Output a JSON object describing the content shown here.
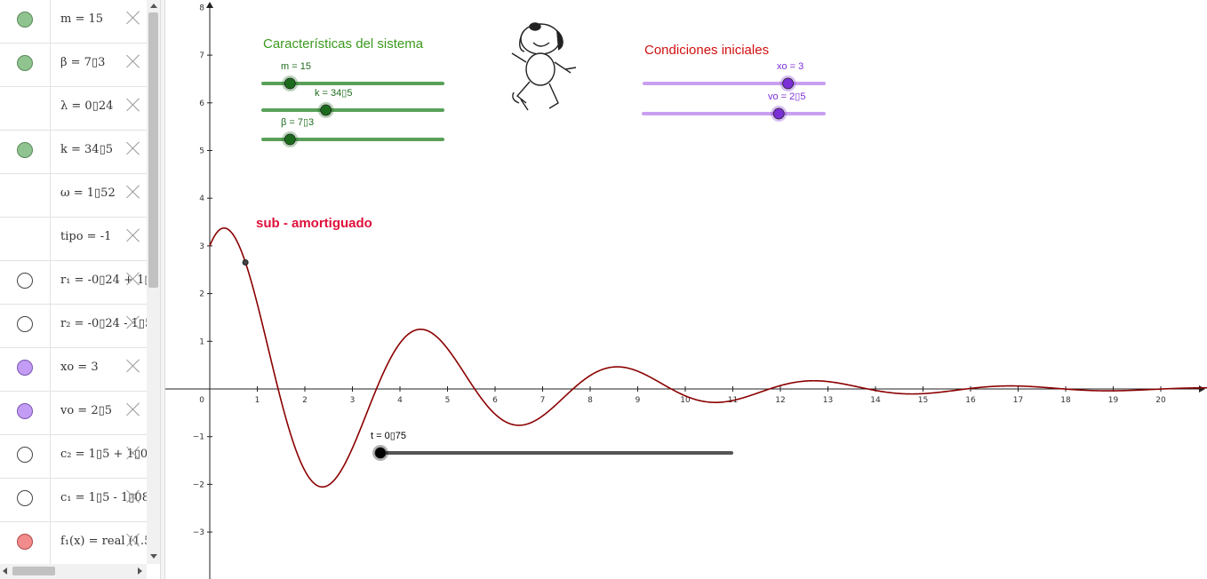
{
  "algebra": {
    "rows": [
      {
        "text": "m = 15",
        "marble": "#8fc38f",
        "marble_border": "#5a8a5a"
      },
      {
        "text": "β = 7▯3",
        "marble": "#8fc38f",
        "marble_border": "#5a8a5a"
      },
      {
        "text": "λ = 0▯24",
        "marble": null
      },
      {
        "text": "k = 34▯5",
        "marble": "#8fc38f",
        "marble_border": "#5a8a5a"
      },
      {
        "text": "ω = 1▯52",
        "marble": null
      },
      {
        "text": "tipo = -1",
        "marble": null
      },
      {
        "text": "r₁ = -0▯24 + 1▯",
        "marble": "#ffffff",
        "marble_border": "#444444"
      },
      {
        "text": "r₂ = -0▯24 - 1▯5",
        "marble": "#ffffff",
        "marble_border": "#444444"
      },
      {
        "text": "xo = 3",
        "marble": "#c39cf5",
        "marble_border": "#7a55b0"
      },
      {
        "text": "vo = 2▯5",
        "marble": "#c39cf5",
        "marble_border": "#7a55b0"
      },
      {
        "text": "c₂ = 1▯5 + 1▯0",
        "marble": "#ffffff",
        "marble_border": "#444444"
      },
      {
        "text": "c₁ = 1▯5 - 1▯08",
        "marble": "#ffffff",
        "marble_border": "#444444"
      },
      {
        "text": "f₁(x) = real (1.5",
        "marble": "#f28b8b",
        "marble_border": "#b04a4a"
      }
    ]
  },
  "graph": {
    "x_ticks": [
      "1",
      "2",
      "3",
      "4",
      "5",
      "6",
      "7",
      "8",
      "9",
      "10",
      "11",
      "12",
      "13",
      "14",
      "15",
      "16",
      "17",
      "18",
      "19",
      "20"
    ],
    "y_ticks_pos": [
      "1",
      "2",
      "3",
      "4",
      "5",
      "6",
      "7",
      "8"
    ],
    "y_ticks_neg": [
      "−1",
      "−2",
      "−3"
    ],
    "origin_label": "0",
    "axis_range": {
      "xmin": 0,
      "xmax": 21,
      "ymin": -3.9,
      "ymax": 8.1
    },
    "curve": {
      "color": "#8b0000",
      "x0": 3,
      "v0": 2.5,
      "lambda": 0.24,
      "omega": 1.52,
      "tmin": 0,
      "tmax": 21
    },
    "point": {
      "t": 0.75
    },
    "system_title": "Características del sistema",
    "system_title_color": "#3a9a1e",
    "initial_title": "Condiciones iniciales",
    "initial_title_color": "#d01010",
    "damping_label": "sub - amortiguado",
    "damping_color": "#e0103a",
    "sliders": [
      {
        "label": "m = 15",
        "value_fraction": 0.15,
        "color": "#5aa05a",
        "knob": "#1c6b1c",
        "label_color": "#1c6b1c"
      },
      {
        "label": "k = 34▯5",
        "value_fraction": 0.35,
        "color": "#5aa05a",
        "knob": "#1c6b1c",
        "label_color": "#1c6b1c"
      },
      {
        "label": "β = 7▯3",
        "value_fraction": 0.15,
        "color": "#5aa05a",
        "knob": "#1c6b1c",
        "label_color": "#1c6b1c"
      },
      {
        "label": "xo = 3",
        "value_fraction": 0.8,
        "color": "#c9a0f0",
        "knob": "#7b2fd6",
        "label_color": "#7b2fd6"
      },
      {
        "label": "vo = 2▯5",
        "value_fraction": 0.75,
        "color": "#c9a0f0",
        "knob": "#7b2fd6",
        "label_color": "#7b2fd6"
      },
      {
        "label": "t = 0▯75",
        "value_fraction": 0.0,
        "color": "#555555",
        "knob": "#000000",
        "label_color": "#000000"
      }
    ]
  }
}
